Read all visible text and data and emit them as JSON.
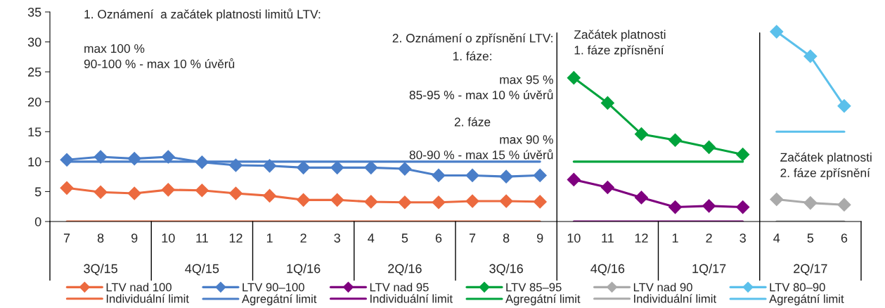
{
  "chart_data": {
    "type": "line",
    "categories": [
      "7",
      "8",
      "9",
      "10",
      "11",
      "12",
      "1",
      "2",
      "3",
      "4",
      "5",
      "6",
      "7",
      "8",
      "9",
      "10",
      "11",
      "12",
      "1",
      "2",
      "3",
      "4",
      "5",
      "6"
    ],
    "series": [
      {
        "name": "LTV nad 100",
        "color": "#ec6a3f",
        "marker": "diamond",
        "values": [
          5.6,
          4.9,
          4.7,
          5.3,
          5.2,
          4.7,
          4.3,
          3.6,
          3.6,
          3.3,
          3.2,
          3.2,
          3.4,
          3.4,
          3.3,
          null,
          null,
          null,
          null,
          null,
          null,
          null,
          null,
          null
        ]
      },
      {
        "name": "Individuální limit",
        "color": "#ec6a3f",
        "marker": "none",
        "values": [
          0,
          0,
          0,
          0,
          0,
          0,
          0,
          0,
          0,
          0,
          0,
          0,
          0,
          0,
          0,
          null,
          null,
          null,
          null,
          null,
          null,
          null,
          null,
          null
        ]
      },
      {
        "name": "LTV 90–100",
        "color": "#4a7ec8",
        "marker": "diamond",
        "values": [
          10.3,
          10.8,
          10.5,
          10.8,
          9.9,
          9.4,
          9.3,
          9.0,
          9.0,
          9.0,
          8.8,
          7.7,
          7.7,
          7.5,
          7.7,
          null,
          null,
          null,
          null,
          null,
          null,
          null,
          null,
          null
        ]
      },
      {
        "name": "Agregátní limit",
        "color": "#4a7ec8",
        "marker": "none",
        "values": [
          10,
          10,
          10,
          10,
          10,
          10,
          10,
          10,
          10,
          10,
          10,
          10,
          10,
          10,
          10,
          null,
          null,
          null,
          null,
          null,
          null,
          null,
          null,
          null
        ]
      },
      {
        "name": "LTV nad 95",
        "color": "#7f007f",
        "marker": "diamond",
        "values": [
          null,
          null,
          null,
          null,
          null,
          null,
          null,
          null,
          null,
          null,
          null,
          null,
          null,
          null,
          null,
          7.0,
          5.7,
          4.0,
          2.4,
          2.6,
          2.4,
          null,
          null,
          null
        ]
      },
      {
        "name": "Individuální limit",
        "color": "#7f007f",
        "marker": "none",
        "values": [
          null,
          null,
          null,
          null,
          null,
          null,
          null,
          null,
          null,
          null,
          null,
          null,
          null,
          null,
          null,
          0,
          0,
          0,
          0,
          0,
          0,
          null,
          null,
          null
        ]
      },
      {
        "name": "LTV 85–95",
        "color": "#00a33c",
        "marker": "diamond",
        "values": [
          null,
          null,
          null,
          null,
          null,
          null,
          null,
          null,
          null,
          null,
          null,
          null,
          null,
          null,
          null,
          24.0,
          19.8,
          14.6,
          13.6,
          12.4,
          11.2,
          null,
          null,
          null
        ]
      },
      {
        "name": "Agregátní limit",
        "color": "#00a33c",
        "marker": "none",
        "values": [
          null,
          null,
          null,
          null,
          null,
          null,
          null,
          null,
          null,
          null,
          null,
          null,
          null,
          null,
          null,
          10,
          10,
          10,
          10,
          10,
          10,
          null,
          null,
          null
        ]
      },
      {
        "name": "LTV nad 90",
        "color": "#aaaaaa",
        "marker": "diamond",
        "values": [
          null,
          null,
          null,
          null,
          null,
          null,
          null,
          null,
          null,
          null,
          null,
          null,
          null,
          null,
          null,
          null,
          null,
          null,
          null,
          null,
          null,
          3.7,
          3.1,
          2.8
        ]
      },
      {
        "name": "Individuální limit",
        "color": "#aaaaaa",
        "marker": "none",
        "values": [
          null,
          null,
          null,
          null,
          null,
          null,
          null,
          null,
          null,
          null,
          null,
          null,
          null,
          null,
          null,
          null,
          null,
          null,
          null,
          null,
          null,
          0,
          0,
          0
        ]
      },
      {
        "name": "LTV 80–90",
        "color": "#5bc0eb",
        "marker": "diamond",
        "values": [
          null,
          null,
          null,
          null,
          null,
          null,
          null,
          null,
          null,
          null,
          null,
          null,
          null,
          null,
          null,
          null,
          null,
          null,
          null,
          null,
          null,
          31.7,
          27.6,
          19.3
        ]
      },
      {
        "name": "Agregátní limit",
        "color": "#5bc0eb",
        "marker": "none",
        "values": [
          null,
          null,
          null,
          null,
          null,
          null,
          null,
          null,
          null,
          null,
          null,
          null,
          null,
          null,
          null,
          null,
          null,
          null,
          null,
          null,
          null,
          15,
          15,
          15
        ]
      }
    ],
    "ylim": [
      0,
      35
    ],
    "yticks": [
      0,
      5,
      10,
      15,
      20,
      25,
      30,
      35
    ],
    "grid": false,
    "legend": "bottom",
    "annotations": [
      "1. Oznámení  a začátek platnosti limitů LTV:",
      "max 100 %\n90-100 % - max 10 % úvěrů",
      "2. Oznámení o zpřísnění LTV:",
      "1. fáze:",
      "max 95 %\n85-95 % - max 10 % úvěrů",
      "2. fáze",
      "max 90 %\n80-90 % - max 15 % úvěrů",
      "Začátek platnosti\n1. fáze zpřísnění",
      "Začátek platnosti\n2. fáze zpřísnění",
      "3Q/15",
      "4Q/15",
      "1Q/16",
      "2Q/16",
      "3Q/16",
      "4Q/16",
      "1Q/17",
      "2Q/17"
    ]
  }
}
